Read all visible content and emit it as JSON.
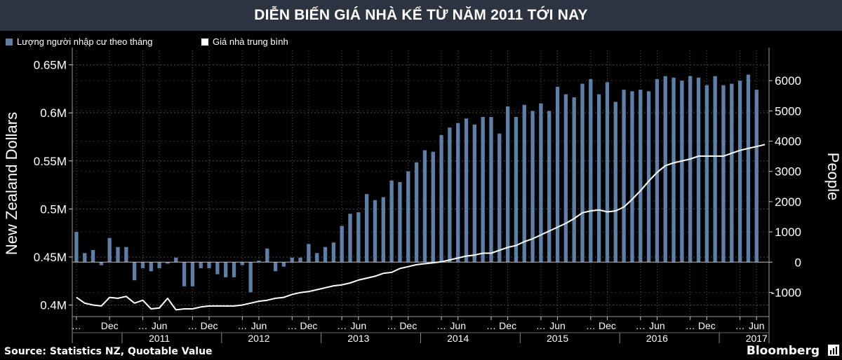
{
  "title": "DIỄN BIẾN GIÁ NHÀ KỂ TỪ NĂM 2011 TỚI NAY",
  "source": "Source: Statistics NZ, Quotable Value",
  "brand": "Bloomberg",
  "colors": {
    "bar": "#5d7fa8",
    "line": "#ffffff",
    "background": "#000000",
    "grid": "#3a3a3a"
  },
  "chart_data": {
    "type": "bar+line",
    "legend": {
      "position": "top-left"
    },
    "left_axis": {
      "label": "New Zealand Dollars",
      "ticks": [
        "0.4M",
        "0.45M",
        "0.5M",
        "0.55M",
        "0.6M",
        "0.65M"
      ],
      "tick_values": [
        400000,
        450000,
        500000,
        550000,
        600000,
        650000
      ],
      "range": [
        388000,
        665000
      ]
    },
    "right_axis": {
      "label": "People",
      "ticks": [
        "-1000",
        "0",
        "1000",
        "2000",
        "3000",
        "4000",
        "5000",
        "6000"
      ],
      "tick_values": [
        -1000,
        0,
        1000,
        2000,
        3000,
        4000,
        5000,
        6000
      ],
      "range": [
        -1800,
        7000
      ]
    },
    "x_month_labels": [
      [
        "…",
        0
      ],
      [
        "Dec",
        4
      ],
      [
        "…",
        8
      ],
      [
        "Jun",
        10
      ],
      [
        "…",
        14
      ],
      [
        "Dec",
        16
      ],
      [
        "…",
        20
      ],
      [
        "Jun",
        22
      ],
      [
        "…",
        26
      ],
      [
        "Dec",
        28
      ],
      [
        "…",
        32
      ],
      [
        "Jun",
        34
      ],
      [
        "…",
        38
      ],
      [
        "Dec",
        40
      ],
      [
        "…",
        44
      ],
      [
        "Jun",
        46
      ],
      [
        "…",
        50
      ],
      [
        "Dec",
        52
      ],
      [
        "…",
        56
      ],
      [
        "Jun",
        58
      ],
      [
        "…",
        62
      ],
      [
        "Dec",
        64
      ],
      [
        "…",
        68
      ],
      [
        "Jun",
        70
      ],
      [
        "…",
        74
      ],
      [
        "Dec",
        76
      ],
      [
        "…",
        80
      ],
      [
        "Jun",
        82
      ]
    ],
    "x_year_labels": [
      "2011",
      "2012",
      "2013",
      "2014",
      "2015",
      "2016",
      "2017"
    ],
    "x_year_label_months": [
      10,
      22,
      34,
      46,
      58,
      70,
      82
    ],
    "x_year_dividers": [
      5.5,
      17.5,
      29.5,
      41.5,
      53.5,
      65.5,
      77.5
    ],
    "months": 84,
    "series": [
      {
        "name": "Lượng người nhập cư theo tháng",
        "axis": "right",
        "type": "bar",
        "values": [
          1000,
          300,
          400,
          -100,
          800,
          500,
          500,
          -600,
          -200,
          -300,
          -200,
          -50,
          150,
          -800,
          -800,
          -200,
          -200,
          -400,
          -500,
          -500,
          -100,
          -1000,
          50,
          450,
          -300,
          -150,
          150,
          150,
          600,
          300,
          500,
          650,
          1200,
          1600,
          1650,
          2250,
          2050,
          2150,
          2700,
          2650,
          3000,
          3300,
          3700,
          3650,
          4200,
          4450,
          4600,
          4750,
          4550,
          4800,
          4800,
          4250,
          5150,
          4800,
          5200,
          5000,
          5250,
          5000,
          5800,
          5550,
          5450,
          5900,
          6050,
          5550,
          5950,
          5300,
          5700,
          5650,
          5700,
          5650,
          6050,
          6150,
          6100,
          6000,
          6150,
          6100,
          5850,
          6150,
          5850,
          5900,
          6000,
          6200,
          5700,
          0
        ]
      },
      {
        "name": "Giá nhà trung bình",
        "axis": "left",
        "type": "line",
        "values": [
          408000,
          402000,
          400000,
          399000,
          408000,
          407000,
          409000,
          402000,
          405000,
          396000,
          397000,
          407000,
          395000,
          396000,
          396000,
          398000,
          399000,
          399000,
          399000,
          399000,
          400000,
          402000,
          404000,
          405000,
          407000,
          408000,
          411000,
          413000,
          414000,
          416000,
          418000,
          420000,
          421000,
          423000,
          426000,
          428000,
          430000,
          433000,
          434000,
          438000,
          440000,
          442000,
          443000,
          444000,
          445000,
          447000,
          449000,
          451000,
          452000,
          454000,
          454000,
          457000,
          460000,
          462000,
          466000,
          469000,
          473000,
          477000,
          481000,
          485000,
          490000,
          496000,
          498000,
          499000,
          497000,
          498000,
          502000,
          510000,
          519000,
          529000,
          538000,
          545000,
          548000,
          550000,
          552000,
          555000,
          555000,
          555000,
          555000,
          558000,
          561000,
          563000,
          565000,
          567000
        ]
      }
    ]
  }
}
